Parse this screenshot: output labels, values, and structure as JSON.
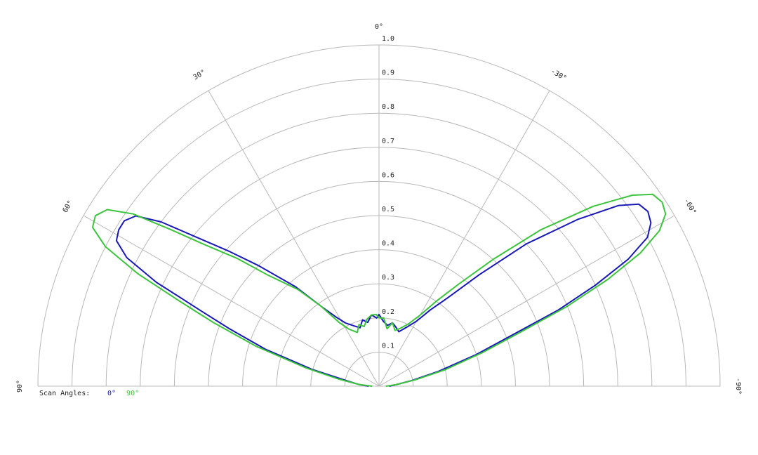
{
  "chart_data": {
    "type": "polar",
    "rlim": [
      0,
      1
    ],
    "rticks": [
      0.1,
      0.2,
      0.3,
      0.4,
      0.5,
      0.6,
      0.7,
      0.8,
      0.9,
      {
        "value": 1,
        "label": "1.0"
      }
    ],
    "thetalim": [
      90,
      -90
    ],
    "thetaticks": [
      {
        "value": 90,
        "label": "90°"
      },
      {
        "value": 60,
        "label": "60°"
      },
      {
        "value": 30,
        "label": "30°"
      },
      {
        "value": 0,
        "label": "0°"
      },
      {
        "value": -30,
        "label": "-30°"
      },
      {
        "value": -60,
        "label": "-60°"
      },
      {
        "value": -90,
        "label": "-90°"
      }
    ],
    "legend_title": "Scan Angles:",
    "theta": [
      90,
      85,
      80,
      76,
      72,
      69,
      67,
      65,
      63,
      61,
      59,
      57,
      55,
      53,
      51,
      48,
      45,
      40,
      36,
      32,
      28,
      22,
      18,
      14,
      10,
      6,
      2,
      0,
      -4,
      -8,
      -12,
      -16,
      -20,
      -25,
      -30,
      -34,
      -38,
      -42,
      -46,
      -50,
      -53,
      -55,
      -57,
      -59,
      -61,
      -63,
      -65,
      -67,
      -69,
      -72,
      -76,
      -80,
      -85,
      -90
    ],
    "series": [
      {
        "name": "0°",
        "color": "#1818b8",
        "values": [
          0.03,
          0.06,
          0.1,
          0.2,
          0.35,
          0.47,
          0.57,
          0.72,
          0.83,
          0.88,
          0.89,
          0.89,
          0.87,
          0.8,
          0.7,
          0.59,
          0.5,
          0.38,
          0.29,
          0.24,
          0.21,
          0.19,
          0.18,
          0.2,
          0.19,
          0.21,
          0.2,
          0.21,
          0.19,
          0.18,
          0.19,
          0.18,
          0.17,
          0.19,
          0.22,
          0.27,
          0.33,
          0.44,
          0.6,
          0.76,
          0.88,
          0.93,
          0.94,
          0.93,
          0.9,
          0.82,
          0.7,
          0.57,
          0.42,
          0.3,
          0.18,
          0.1,
          0.05,
          0.03
        ]
      },
      {
        "name": "90°",
        "color": "#3cc43c",
        "values": [
          0.02,
          0.06,
          0.12,
          0.22,
          0.38,
          0.52,
          0.63,
          0.78,
          0.9,
          0.96,
          0.97,
          0.95,
          0.88,
          0.76,
          0.66,
          0.56,
          0.46,
          0.37,
          0.29,
          0.22,
          0.19,
          0.17,
          0.19,
          0.18,
          0.2,
          0.21,
          0.21,
          0.2,
          0.2,
          0.17,
          0.19,
          0.17,
          0.18,
          0.2,
          0.24,
          0.3,
          0.38,
          0.5,
          0.66,
          0.82,
          0.93,
          0.98,
          0.99,
          0.98,
          0.94,
          0.86,
          0.74,
          0.6,
          0.45,
          0.32,
          0.2,
          0.11,
          0.05,
          0.02
        ]
      }
    ]
  }
}
